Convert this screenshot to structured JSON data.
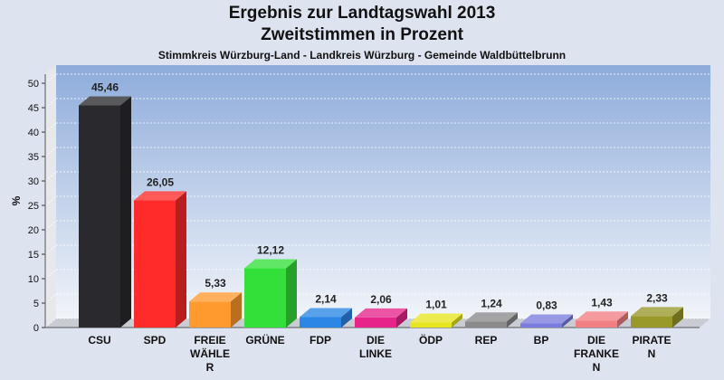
{
  "chart_data": {
    "type": "bar",
    "title": "Ergebnis zur Landtagswahl 2013",
    "subtitle_line": "Zweitstimmen in Prozent",
    "caption": "Stimmkreis Würzburg-Land - Landkreis Würzburg - Gemeinde Waldbüttelbrunn",
    "ylabel": "%",
    "xlabel": "",
    "ylim": [
      0,
      50
    ],
    "yticks": [
      "0",
      "5",
      "10",
      "15",
      "20",
      "25",
      "30",
      "35",
      "40",
      "45",
      "50"
    ],
    "categories": [
      [
        "CSU"
      ],
      [
        "SPD"
      ],
      [
        "FREIE",
        "WÄHLE",
        "R"
      ],
      [
        "GRÜNE"
      ],
      [
        "FDP"
      ],
      [
        "DIE",
        "LINKE"
      ],
      [
        "ÖDP"
      ],
      [
        "REP"
      ],
      [
        "BP"
      ],
      [
        "DIE",
        "FRANKE",
        "N"
      ],
      [
        "PIRATE",
        "N"
      ]
    ],
    "values": [
      45.46,
      26.05,
      5.33,
      12.12,
      2.14,
      2.06,
      1.01,
      1.24,
      0.83,
      1.43,
      2.33
    ],
    "value_labels": [
      "45,46",
      "26,05",
      "5,33",
      "12,12",
      "2,14",
      "2,06",
      "1,01",
      "1,24",
      "0,83",
      "1,43",
      "2,33"
    ],
    "colors": [
      "#2a2a2e",
      "#ff2a2a",
      "#ff9a2e",
      "#33e03a",
      "#2b86e6",
      "#e7248a",
      "#e6e61e",
      "#8a8a8a",
      "#7b7bde",
      "#f27f84",
      "#99992a"
    ],
    "grid": true
  }
}
